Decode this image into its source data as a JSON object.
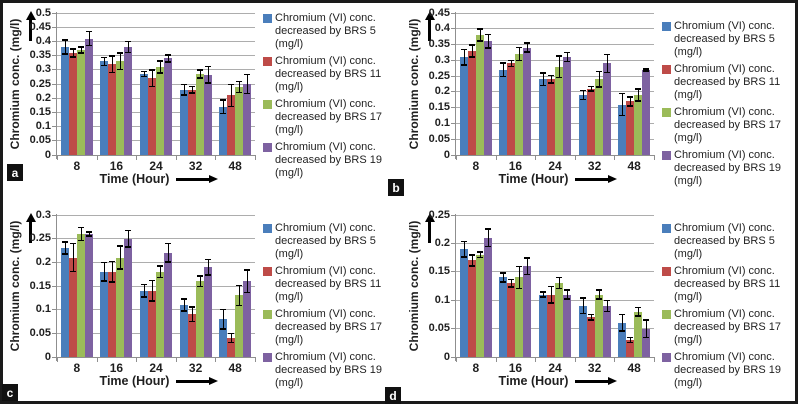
{
  "figure": {
    "background": "#ffffff",
    "border_color": "#1a1a1a",
    "text_color": "#1f1f1f",
    "gridline_color": "#adadad"
  },
  "chart_data": [
    {
      "panel": "a",
      "type": "bar",
      "xlabel": "Time (Hour)",
      "ylabel": "Chromium conc. (mg/l)",
      "categories": [
        "8",
        "16",
        "24",
        "32",
        "48"
      ],
      "ylim": [
        0,
        0.5
      ],
      "ytick_step": 0.05,
      "grid": true,
      "legend_position": "right",
      "error_bars": true,
      "series": [
        {
          "name": "BRS 5",
          "color": "#4A7EBB",
          "legend_lines": [
            "Chromium (VI) conc.",
            "decreased by BRS 5",
            "(mg/l)"
          ],
          "values": [
            0.38,
            0.33,
            0.285,
            0.23,
            0.17
          ],
          "errors": [
            0.025,
            0.015,
            0.01,
            0.02,
            0.025
          ]
        },
        {
          "name": "BRS 11",
          "color": "#BE4B48",
          "legend_lines": [
            "Chromium (VI) conc.",
            "decreased by BRS 11",
            "(mg/l)"
          ],
          "values": [
            0.36,
            0.32,
            0.27,
            0.23,
            0.21
          ],
          "errors": [
            0.015,
            0.03,
            0.03,
            0.012,
            0.04
          ]
        },
        {
          "name": "BRS 17",
          "color": "#9BBB59",
          "legend_lines": [
            "Chromium (VI) conc.",
            "decreased by BRS 17",
            "(mg/l)"
          ],
          "values": [
            0.37,
            0.33,
            0.31,
            0.285,
            0.24
          ],
          "errors": [
            0.012,
            0.03,
            0.022,
            0.015,
            0.02
          ]
        },
        {
          "name": "BRS 19",
          "color": "#7E62A1",
          "legend_lines": [
            "Chromium (VI) conc.",
            "decreased by BRS 19",
            "(mg/l)"
          ],
          "values": [
            0.41,
            0.38,
            0.34,
            0.283,
            0.25
          ],
          "errors": [
            0.025,
            0.02,
            0.013,
            0.03,
            0.035
          ]
        }
      ]
    },
    {
      "panel": "b",
      "type": "bar",
      "xlabel": "Time (Hour)",
      "ylabel": "Chromium conc. (mg/l)",
      "categories": [
        "8",
        "16",
        "24",
        "32",
        "48"
      ],
      "ylim": [
        0,
        0.45
      ],
      "ytick_step": 0.05,
      "grid": true,
      "legend_position": "right",
      "error_bars": true,
      "series": [
        {
          "name": "BRS 5",
          "color": "#4A7EBB",
          "legend_lines": [
            "Chromium (VI) conc.",
            "decreased by BRS 5",
            "(mg/l)"
          ],
          "values": [
            0.31,
            0.27,
            0.24,
            0.19,
            0.16
          ],
          "errors": [
            0.025,
            0.022,
            0.02,
            0.015,
            0.035
          ]
        },
        {
          "name": "BRS 11",
          "color": "#BE4B48",
          "legend_lines": [
            "Chromium (VI) conc.",
            "decreased by BRS 11",
            "(mg/l)"
          ],
          "values": [
            0.33,
            0.29,
            0.24,
            0.21,
            0.17
          ],
          "errors": [
            0.02,
            0.01,
            0.012,
            0.008,
            0.015
          ]
        },
        {
          "name": "BRS 17",
          "color": "#9BBB59",
          "legend_lines": [
            "Chromium (VI) conc.",
            "decreased by BRS 17",
            "(mg/l)"
          ],
          "values": [
            0.38,
            0.32,
            0.28,
            0.24,
            0.19
          ],
          "errors": [
            0.02,
            0.022,
            0.035,
            0.025,
            0.02
          ]
        },
        {
          "name": "BRS 19",
          "color": "#7E62A1",
          "legend_lines": [
            "Chromium (VI) conc.",
            "decreased by BRS 19",
            "(mg/l)"
          ],
          "values": [
            0.36,
            0.34,
            0.31,
            0.29,
            0.27
          ],
          "errors": [
            0.022,
            0.015,
            0.015,
            0.03,
            0.004
          ]
        }
      ]
    },
    {
      "panel": "c",
      "type": "bar",
      "xlabel": "Time (Hour)",
      "ylabel": "Chromium conc. (mg/l)",
      "categories": [
        "8",
        "16",
        "24",
        "32",
        "48"
      ],
      "ylim": [
        0,
        0.3
      ],
      "ytick_step": 0.05,
      "grid": true,
      "legend_position": "right",
      "error_bars": true,
      "series": [
        {
          "name": "BRS 5",
          "color": "#4A7EBB",
          "legend_lines": [
            "Chromium (VI) conc.",
            "decreased by BRS 5",
            "(mg/l)"
          ],
          "values": [
            0.23,
            0.18,
            0.14,
            0.11,
            0.08
          ],
          "errors": [
            0.013,
            0.02,
            0.014,
            0.013,
            0.021
          ]
        },
        {
          "name": "BRS 11",
          "color": "#BE4B48",
          "legend_lines": [
            "Chromium (VI) conc.",
            "decreased by BRS 11",
            "(mg/l)"
          ],
          "values": [
            0.21,
            0.18,
            0.14,
            0.09,
            0.04
          ],
          "errors": [
            0.03,
            0.022,
            0.022,
            0.016,
            0.01
          ]
        },
        {
          "name": "BRS 17",
          "color": "#9BBB59",
          "legend_lines": [
            "Chromium (VI) conc.",
            "decreased by BRS 17",
            "(mg/l)"
          ],
          "values": [
            0.26,
            0.21,
            0.18,
            0.16,
            0.13
          ],
          "errors": [
            0.014,
            0.025,
            0.013,
            0.012,
            0.022
          ]
        },
        {
          "name": "BRS 19",
          "color": "#7E62A1",
          "legend_lines": [
            "Chromium (VI) conc.",
            "decreased by BRS 19",
            "(mg/l)"
          ],
          "values": [
            0.26,
            0.25,
            0.22,
            0.19,
            0.16
          ],
          "errors": [
            0.005,
            0.018,
            0.02,
            0.017,
            0.024
          ]
        }
      ]
    },
    {
      "panel": "d",
      "type": "bar",
      "xlabel": "Time (Hour)",
      "ylabel": "Chromium conc. (mg/l)",
      "categories": [
        "8",
        "16",
        "24",
        "32",
        "48"
      ],
      "ylim": [
        0,
        0.25
      ],
      "ytick_step": 0.05,
      "grid": true,
      "legend_position": "right",
      "error_bars": true,
      "series": [
        {
          "name": "BRS 5",
          "color": "#4A7EBB",
          "legend_lines": [
            "Chromium (VI) conc.",
            "decreased by BRS 5",
            "(mg/l)"
          ],
          "values": [
            0.19,
            0.14,
            0.11,
            0.09,
            0.06
          ],
          "errors": [
            0.014,
            0.008,
            0.005,
            0.014,
            0.015
          ]
        },
        {
          "name": "BRS 11",
          "color": "#BE4B48",
          "legend_lines": [
            "Chromium (VI) conc.",
            "decreased by BRS 11",
            "(mg/l)"
          ],
          "values": [
            0.17,
            0.13,
            0.11,
            0.07,
            0.03
          ],
          "errors": [
            0.01,
            0.007,
            0.015,
            0.005,
            0.005
          ]
        },
        {
          "name": "BRS 17",
          "color": "#9BBB59",
          "legend_lines": [
            "Chromium (VI) conc.",
            "decreased by BRS 17",
            "(mg/l)"
          ],
          "values": [
            0.18,
            0.14,
            0.13,
            0.11,
            0.08
          ],
          "errors": [
            0.005,
            0.02,
            0.01,
            0.008,
            0.008
          ]
        },
        {
          "name": "BRS 19",
          "color": "#7E62A1",
          "legend_lines": [
            "Chromium (VI) conc.",
            "decreased by BRS 19",
            "(mg/l)"
          ],
          "values": [
            0.21,
            0.16,
            0.11,
            0.09,
            0.05
          ],
          "errors": [
            0.016,
            0.015,
            0.008,
            0.01,
            0.016
          ]
        }
      ]
    }
  ]
}
